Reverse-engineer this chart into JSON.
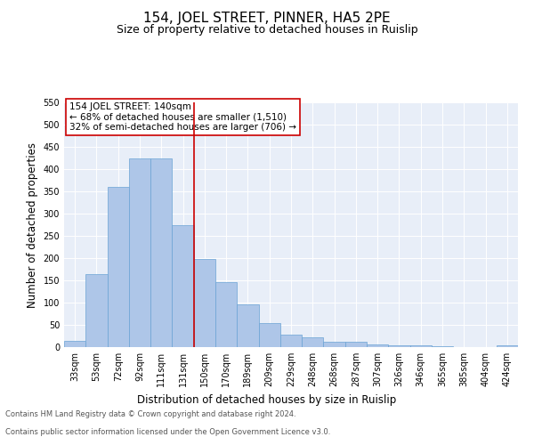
{
  "title": "154, JOEL STREET, PINNER, HA5 2PE",
  "subtitle": "Size of property relative to detached houses in Ruislip",
  "xlabel": "Distribution of detached houses by size in Ruislip",
  "ylabel": "Number of detached properties",
  "categories": [
    "33sqm",
    "53sqm",
    "72sqm",
    "92sqm",
    "111sqm",
    "131sqm",
    "150sqm",
    "170sqm",
    "189sqm",
    "209sqm",
    "229sqm",
    "248sqm",
    "268sqm",
    "287sqm",
    "307sqm",
    "326sqm",
    "346sqm",
    "365sqm",
    "385sqm",
    "404sqm",
    "424sqm"
  ],
  "values": [
    15,
    165,
    360,
    425,
    425,
    275,
    198,
    147,
    97,
    55,
    29,
    22,
    13,
    13,
    7,
    5,
    4,
    2,
    1,
    0,
    5
  ],
  "bar_color": "#aec6e8",
  "bar_edge_color": "#6aa3d5",
  "vline_x": 5.5,
  "vline_color": "#cc0000",
  "annotation_text": "154 JOEL STREET: 140sqm\n← 68% of detached houses are smaller (1,510)\n32% of semi-detached houses are larger (706) →",
  "annotation_box_color": "#ffffff",
  "annotation_box_edge_color": "#cc0000",
  "ylim": [
    0,
    550
  ],
  "yticks": [
    0,
    50,
    100,
    150,
    200,
    250,
    300,
    350,
    400,
    450,
    500,
    550
  ],
  "bg_color": "#e8eef8",
  "footer_line1": "Contains HM Land Registry data © Crown copyright and database right 2024.",
  "footer_line2": "Contains public sector information licensed under the Open Government Licence v3.0.",
  "title_fontsize": 11,
  "subtitle_fontsize": 9,
  "axis_label_fontsize": 8.5,
  "tick_fontsize": 7,
  "annotation_fontsize": 7.5,
  "footer_fontsize": 6
}
